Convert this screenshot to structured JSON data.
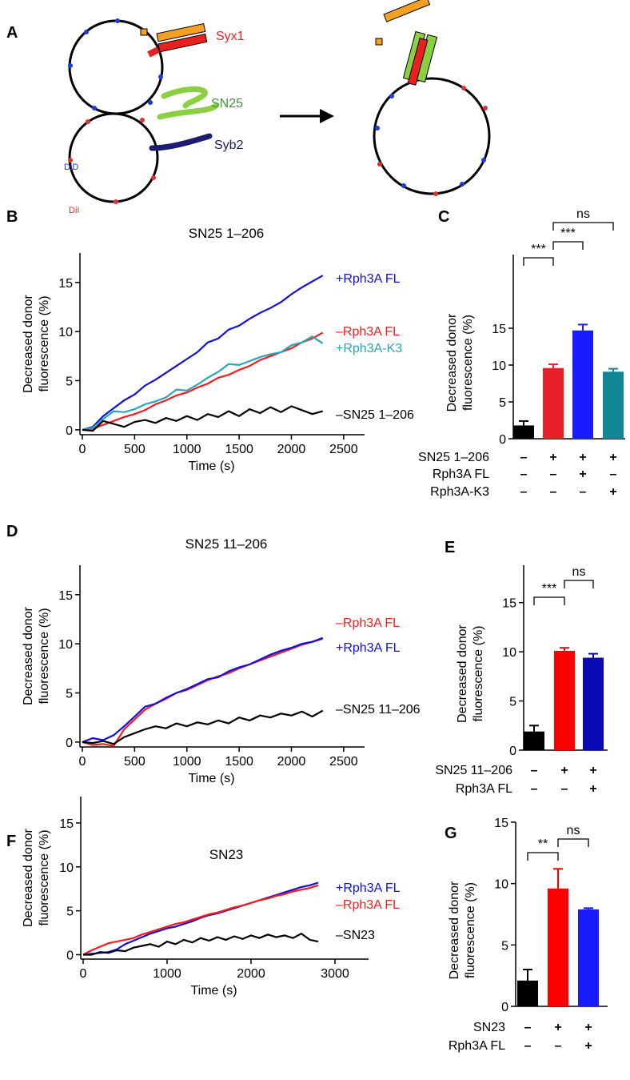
{
  "diagram": {
    "panel": "A",
    "labels": [
      "Syx1",
      "SN25",
      "Syb2",
      "DiD",
      "DiI"
    ]
  },
  "chart_data": [
    {
      "type": "line",
      "panel": "B",
      "title": "SN25 1–206",
      "xlabel": "Time (s)",
      "ylabel": [
        "Decreased donor",
        "fluorescence (%)"
      ],
      "x": [
        0,
        100,
        200,
        300,
        400,
        500,
        600,
        700,
        800,
        900,
        1000,
        1100,
        1200,
        1300,
        1400,
        1500,
        1600,
        1700,
        1800,
        1900,
        2000,
        2100,
        2200,
        2300
      ],
      "series": [
        {
          "name": "+Rph3A FL",
          "color": "#1010e0",
          "values": [
            0,
            0.3,
            1.4,
            2.2,
            3.0,
            3.6,
            4.5,
            5.1,
            5.8,
            6.5,
            7.2,
            7.9,
            8.9,
            9.3,
            10.2,
            10.6,
            11.3,
            11.9,
            12.4,
            13.0,
            13.8,
            14.5,
            15.1,
            15.7
          ]
        },
        {
          "name": "–Rph3A FL",
          "color": "#ff1a1a",
          "values": [
            0,
            0.1,
            0.5,
            0.9,
            1.3,
            1.6,
            2.0,
            2.6,
            3.0,
            3.5,
            3.8,
            4.3,
            4.7,
            5.3,
            5.6,
            6.1,
            6.5,
            7.1,
            7.5,
            7.9,
            8.3,
            8.9,
            9.3,
            9.9
          ]
        },
        {
          "name": "+Rph3A-K3",
          "color": "#26a8b8",
          "values": [
            0,
            0.2,
            1.1,
            1.9,
            1.8,
            2.1,
            2.6,
            2.9,
            3.3,
            4.1,
            4.0,
            4.6,
            5.3,
            5.9,
            6.7,
            6.6,
            7.0,
            7.4,
            7.7,
            7.9,
            8.6,
            8.9,
            9.5,
            8.8
          ]
        },
        {
          "name": "–SN25 1–206",
          "color": "#000000",
          "values": [
            0,
            -0.1,
            0.9,
            0.6,
            0.3,
            0.8,
            1.0,
            0.7,
            1.2,
            0.9,
            1.4,
            1.0,
            1.6,
            1.3,
            1.9,
            1.4,
            2.1,
            1.7,
            2.3,
            1.8,
            2.4,
            2.0,
            1.6,
            1.9
          ]
        }
      ],
      "xlim": [
        0,
        2700
      ],
      "ylim": [
        -0.5,
        18
      ],
      "xticks": [
        0,
        500,
        1000,
        1500,
        2000,
        2500
      ],
      "yticks": [
        0,
        5,
        10,
        15
      ]
    },
    {
      "type": "bar",
      "panel": "C",
      "ylabel": [
        "Decreased donor",
        "fluorescence (%)"
      ],
      "values": [
        1.8,
        9.6,
        14.7,
        9.1
      ],
      "errors": [
        0.6,
        0.5,
        0.8,
        0.4
      ],
      "colors": [
        "#000000",
        "#e8202a",
        "#1a1aff",
        "#118796"
      ],
      "ylim": [
        0,
        25
      ],
      "yticks": [
        0,
        5,
        10,
        15
      ],
      "conditions": [
        {
          "name": "SN25 1–206",
          "marks": [
            "–",
            "+",
            "+",
            "+"
          ]
        },
        {
          "name": "Rph3A FL",
          "marks": [
            "–",
            "–",
            "+",
            "–"
          ]
        },
        {
          "name": "Rph3A-K3",
          "marks": [
            "–",
            "–",
            "–",
            "+"
          ]
        }
      ],
      "significance": [
        "***",
        "***",
        "ns"
      ]
    },
    {
      "type": "line",
      "panel": "D",
      "title": "SN25 11–206",
      "xlabel": "Time (s)",
      "ylabel": [
        "Decreased donor",
        "fluorescence (%)"
      ],
      "x": [
        0,
        100,
        200,
        300,
        400,
        500,
        600,
        700,
        800,
        900,
        1000,
        1100,
        1200,
        1300,
        1400,
        1500,
        1600,
        1700,
        1800,
        1900,
        2000,
        2100,
        2200,
        2300
      ],
      "series": [
        {
          "name": "–Rph3A FL",
          "color": "#ff1a1a",
          "values": [
            0,
            -0.3,
            -0.2,
            -0.4,
            1.3,
            2.3,
            3.3,
            3.9,
            4.4,
            5.0,
            5.3,
            5.8,
            6.3,
            6.7,
            7.0,
            7.5,
            7.9,
            8.3,
            8.7,
            9.1,
            9.5,
            9.9,
            10.2,
            10.5
          ]
        },
        {
          "name": "+Rph3A FL",
          "color": "#1010e0",
          "values": [
            0,
            0.4,
            0.2,
            0.7,
            1.6,
            2.6,
            3.6,
            3.9,
            4.5,
            5.0,
            5.4,
            5.9,
            6.4,
            6.6,
            7.2,
            7.6,
            7.9,
            8.4,
            8.9,
            9.3,
            9.6,
            10.0,
            10.2,
            10.6
          ]
        },
        {
          "name": "–SN25 11–206",
          "color": "#000000",
          "values": [
            0,
            -0.1,
            0.1,
            -0.2,
            0.5,
            0.9,
            1.3,
            1.6,
            1.4,
            1.9,
            1.6,
            2.0,
            1.8,
            2.2,
            1.9,
            2.5,
            2.2,
            2.7,
            2.5,
            2.9,
            2.7,
            3.1,
            2.6,
            3.2
          ]
        }
      ],
      "xlim": [
        0,
        2700
      ],
      "ylim": [
        -0.5,
        18
      ],
      "xticks": [
        0,
        500,
        1000,
        1500,
        2000,
        2500
      ],
      "yticks": [
        0,
        5,
        10,
        15
      ]
    },
    {
      "type": "bar",
      "panel": "E",
      "ylabel": [
        "Decreased donor",
        "fluorescence (%)"
      ],
      "values": [
        1.9,
        10.1,
        9.4
      ],
      "errors": [
        0.6,
        0.3,
        0.4
      ],
      "colors": [
        "#000000",
        "#ff0000",
        "#0a0ab4"
      ],
      "ylim": [
        0,
        18.8
      ],
      "yticks": [
        0,
        5,
        10,
        15
      ],
      "conditions": [
        {
          "name": "SN25 11–206",
          "marks": [
            "–",
            "+",
            "+"
          ]
        },
        {
          "name": "Rph3A FL",
          "marks": [
            "–",
            "–",
            "+"
          ]
        }
      ],
      "significance": [
        "***",
        "ns"
      ]
    },
    {
      "type": "line",
      "panel": "F",
      "title": "SN23",
      "xlabel": "Time (s)",
      "ylabel": [
        "Decreased donor",
        "fluorescence (%)"
      ],
      "x": [
        0,
        100,
        200,
        300,
        400,
        500,
        600,
        700,
        800,
        900,
        1000,
        1100,
        1200,
        1300,
        1400,
        1500,
        1600,
        1700,
        1800,
        1900,
        2000,
        2100,
        2200,
        2300,
        2400,
        2500,
        2600,
        2700,
        2800
      ],
      "series": [
        {
          "name": "+Rph3A FL",
          "color": "#1010e0",
          "values": [
            0,
            0.1,
            0.2,
            0.3,
            0.6,
            1.2,
            1.6,
            2.0,
            2.4,
            2.7,
            3.0,
            3.2,
            3.5,
            3.8,
            4.2,
            4.5,
            4.7,
            5.0,
            5.3,
            5.6,
            5.9,
            6.2,
            6.5,
            6.8,
            7.1,
            7.4,
            7.7,
            7.9,
            8.2
          ]
        },
        {
          "name": "–Rph3A FL",
          "color": "#ff1a1a",
          "values": [
            0,
            0.5,
            0.9,
            1.3,
            1.5,
            1.7,
            1.9,
            2.3,
            2.6,
            2.9,
            3.2,
            3.5,
            3.7,
            4.0,
            4.3,
            4.6,
            4.8,
            5.1,
            5.4,
            5.6,
            5.9,
            6.2,
            6.4,
            6.7,
            6.9,
            7.2,
            7.4,
            7.6,
            7.9
          ]
        },
        {
          "name": "–SN23",
          "color": "#000000",
          "values": [
            0,
            0.0,
            0.3,
            0.2,
            0.5,
            0.4,
            0.8,
            1.0,
            1.2,
            0.9,
            1.5,
            1.2,
            1.7,
            1.4,
            1.9,
            1.6,
            2.0,
            1.7,
            2.1,
            1.8,
            2.2,
            1.9,
            2.3,
            2.0,
            2.2,
            1.9,
            2.4,
            1.7,
            1.5
          ]
        }
      ],
      "xlim": [
        0,
        3400
      ],
      "ylim": [
        -0.5,
        18
      ],
      "xticks": [
        0,
        1000,
        2000,
        3000
      ],
      "yticks": [
        0,
        5,
        10,
        15
      ]
    },
    {
      "type": "bar",
      "panel": "G",
      "ylabel": [
        "Decreased donor",
        "fluorescence (%)"
      ],
      "values": [
        2.1,
        9.6,
        7.9
      ],
      "errors": [
        0.9,
        1.6,
        0.1
      ],
      "colors": [
        "#000000",
        "#ff0000",
        "#1a1aff"
      ],
      "ylim": [
        0,
        15
      ],
      "yticks": [
        0,
        5,
        10,
        15
      ],
      "conditions": [
        {
          "name": "SN23",
          "marks": [
            "–",
            "+",
            "+"
          ]
        },
        {
          "name": "Rph3A FL",
          "marks": [
            "–",
            "–",
            "+"
          ]
        }
      ],
      "significance": [
        "**",
        "ns"
      ]
    }
  ]
}
